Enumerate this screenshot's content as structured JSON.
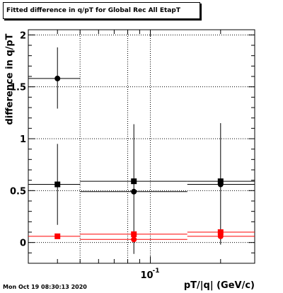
{
  "title": "Fitted difference in q/pT for Global Rec All EtapT",
  "timestamp": "Mon Oct 19 08:30:13 2020",
  "chart_data": {
    "type": "scatter",
    "title": "Fitted difference in q/pT for Global Rec All EtapT",
    "xlabel": "pT/|q| (GeV/c)",
    "ylabel": "difference in q/pT",
    "xscale": "log",
    "xlim": [
      0.03,
      0.28
    ],
    "ylim": [
      -0.2,
      2.05
    ],
    "grid": true,
    "yticks": [
      "0",
      "0.5",
      "1",
      "1.5",
      "2"
    ],
    "xticks": [
      {
        "base": "10",
        "exp": "-1",
        "value": 0.1
      }
    ],
    "series": [
      {
        "color": "#000000",
        "marker": "circle",
        "points": [
          {
            "x": 0.04,
            "y": 1.58,
            "xlo": 0.03,
            "xhi": 0.05,
            "ylo": 1.29,
            "yhi": 1.88
          },
          {
            "x": 0.085,
            "y": 0.49,
            "xlo": 0.05,
            "xhi": 0.144,
            "ylo": -0.11,
            "yhi": 1.14
          },
          {
            "x": 0.2,
            "y": 0.56,
            "xlo": 0.144,
            "xhi": 0.28,
            "ylo": -0.02,
            "yhi": 1.15
          }
        ]
      },
      {
        "color": "#000000",
        "marker": "square",
        "points": [
          {
            "x": 0.04,
            "y": 0.56,
            "xlo": 0.03,
            "xhi": 0.05,
            "ylo": 0.17,
            "yhi": 0.95
          },
          {
            "x": 0.085,
            "y": 0.59,
            "xlo": 0.05,
            "xhi": 0.144,
            "ylo": 0.59,
            "yhi": 0.59
          },
          {
            "x": 0.2,
            "y": 0.59,
            "xlo": 0.144,
            "xhi": 0.28,
            "ylo": 0.59,
            "yhi": 0.59
          }
        ]
      },
      {
        "color": "#ff0000",
        "marker": "circle",
        "points": [
          {
            "x": 0.085,
            "y": 0.03,
            "xlo": 0.05,
            "xhi": 0.144,
            "ylo": 0.03,
            "yhi": 0.03
          },
          {
            "x": 0.2,
            "y": 0.06,
            "xlo": 0.144,
            "xhi": 0.28,
            "ylo": 0.06,
            "yhi": 0.06
          }
        ]
      },
      {
        "color": "#ff0000",
        "marker": "square",
        "points": [
          {
            "x": 0.04,
            "y": 0.06,
            "xlo": 0.03,
            "xhi": 0.05,
            "ylo": 0.06,
            "yhi": 0.06
          },
          {
            "x": 0.085,
            "y": 0.08,
            "xlo": 0.05,
            "xhi": 0.144,
            "ylo": 0.08,
            "yhi": 0.08
          },
          {
            "x": 0.2,
            "y": 0.1,
            "xlo": 0.144,
            "xhi": 0.28,
            "ylo": 0.1,
            "yhi": 0.1
          }
        ]
      }
    ]
  }
}
